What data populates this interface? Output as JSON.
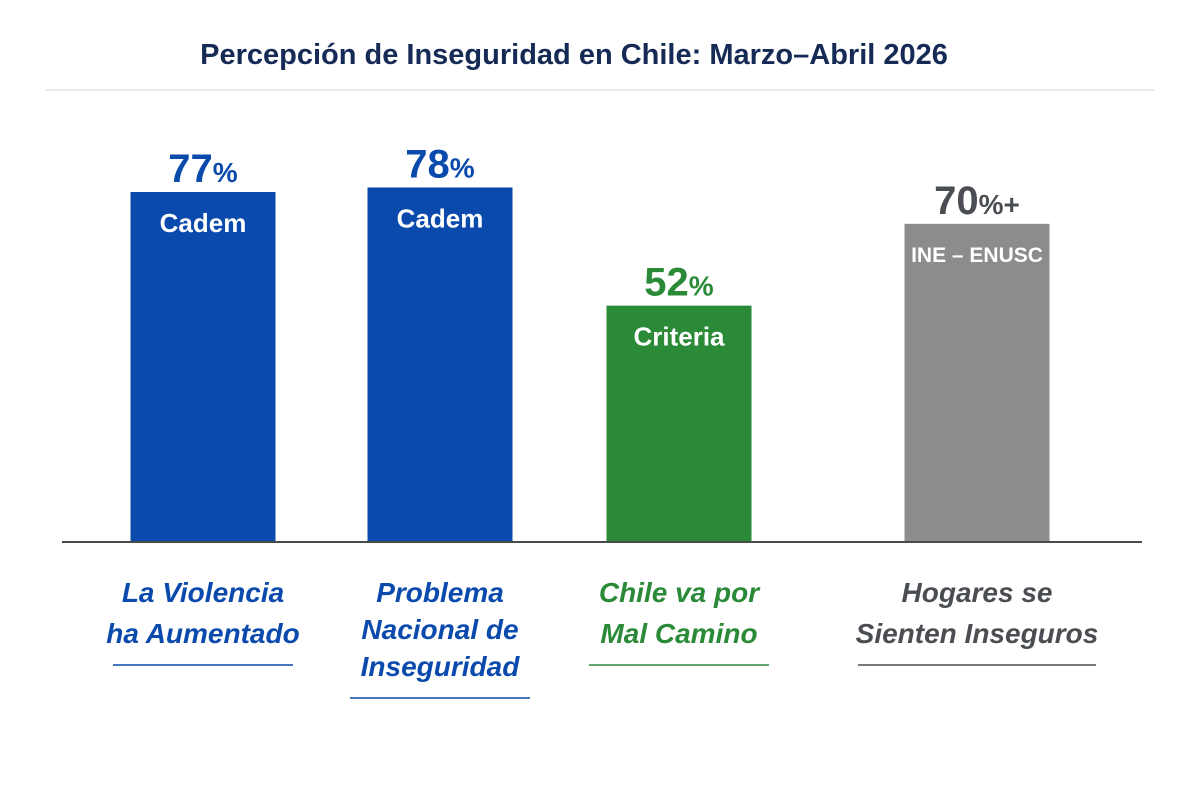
{
  "chart_data": {
    "type": "bar",
    "title": "Percepción de Inseguridad en Chile: Marzo–Abril 2026",
    "xlabel": "",
    "ylabel": "",
    "ylim": [
      0,
      100
    ],
    "grid": false,
    "legend": "none",
    "bars": [
      {
        "category": [
          "La Violencia",
          "ha Aumentado"
        ],
        "value": 77,
        "value_label": "77",
        "suffix": "%",
        "source": "Cadem",
        "color": "#0b4aad",
        "label_color": "#0b4aad"
      },
      {
        "category": [
          "Problema",
          "Nacional de",
          "Inseguridad"
        ],
        "value": 78,
        "value_label": "78",
        "suffix": "%",
        "source": "Cadem",
        "color": "#0b4aad",
        "label_color": "#0b4aad"
      },
      {
        "category": [
          "Chile va por",
          "Mal Camino"
        ],
        "value": 52,
        "value_label": "52",
        "suffix": "%",
        "source": "Criteria",
        "color": "#2a8a38",
        "label_color": "#2a8a38"
      },
      {
        "category": [
          "Hogares se",
          "Sienten Inseguros"
        ],
        "value": 70,
        "value_label": "70",
        "suffix": "%+",
        "source": "INE – ENUSC",
        "color": "#8b8c8e",
        "label_color": "#4a4d52"
      }
    ]
  },
  "colors": {
    "title": "#152a55",
    "axis": "#4a4a4a",
    "divider": "#dce3ec"
  }
}
